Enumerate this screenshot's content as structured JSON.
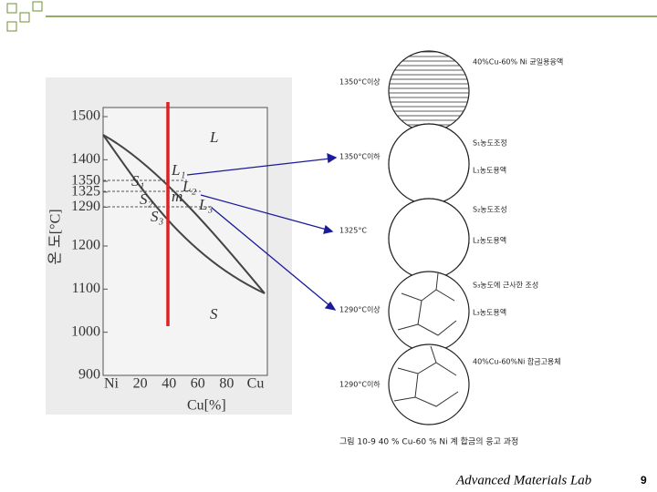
{
  "diagram": {
    "y_axis_label": "온 도[°C]",
    "x_axis_label": "Cu[%]",
    "yticks": [
      1500,
      1400,
      1350,
      1325,
      1290,
      1200,
      1100,
      1000,
      900
    ],
    "xticks": [
      "Ni",
      20,
      40,
      60,
      80,
      "Cu"
    ],
    "region_labels": [
      "L",
      "S",
      "L₁",
      "L₂",
      "L₃",
      "S₁",
      "S₂",
      "S₃",
      "m"
    ]
  },
  "stages": [
    {
      "temperature": "1350°C이상",
      "notes": [
        "40%Cu-60% Ni 균일용융액"
      ]
    },
    {
      "temperature": "1350°C이하",
      "notes": [
        "S₁농도조정",
        "L₁농도용액"
      ]
    },
    {
      "temperature": "1325°C",
      "notes": [
        "S₂농도조성",
        "L₂농도용액"
      ]
    },
    {
      "temperature": "1290°C이상",
      "notes": [
        "S₃농도에 근사한 조성",
        "L₃농도용액"
      ]
    },
    {
      "temperature": "1290°C이하",
      "notes": [
        "40%Cu-60%Ni 합금고용체"
      ]
    }
  ],
  "caption": "그림 10-9  40 % Cu-60 % Ni 계 합금의 응고 과정",
  "footer": {
    "lab": "Advanced Materials Lab",
    "page": "9"
  }
}
